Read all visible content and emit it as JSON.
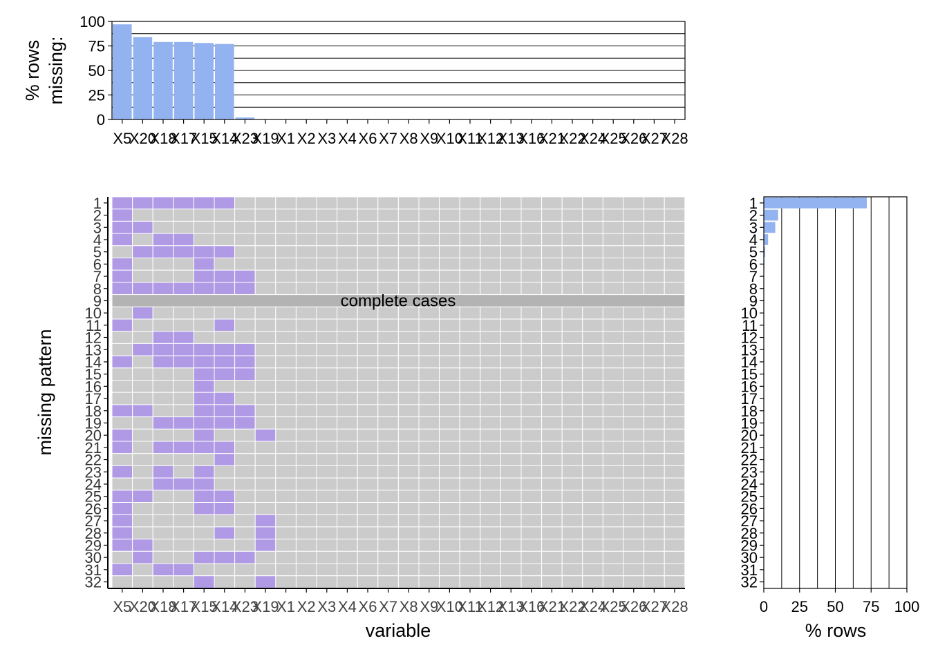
{
  "chart_data": [
    {
      "type": "bar",
      "panel": "top",
      "ylabel_lines": [
        "% rows",
        "missing:"
      ],
      "ylim": [
        0,
        100
      ],
      "yticks": [
        "0",
        "25",
        "50",
        "75",
        "100"
      ],
      "gridlines": [
        0,
        12.5,
        25,
        37.5,
        50,
        62.5,
        75,
        87.5,
        100
      ],
      "bar_color": "#93b3f0",
      "categories": [
        "X5",
        "X20",
        "X18",
        "X17",
        "X15",
        "X14",
        "X23",
        "X19",
        "X1",
        "X2",
        "X3",
        "X4",
        "X6",
        "X7",
        "X8",
        "X9",
        "X10",
        "X11",
        "X12",
        "X13",
        "X16",
        "X21",
        "X22",
        "X24",
        "X25",
        "X26",
        "X27",
        "X28"
      ],
      "values": [
        97,
        84,
        79,
        79,
        78,
        77,
        2,
        0,
        0,
        0,
        0,
        0,
        0,
        0,
        0,
        0,
        0,
        0,
        0,
        0,
        0,
        0,
        0,
        0,
        0,
        0,
        0,
        0
      ]
    },
    {
      "type": "heatmap",
      "panel": "main",
      "xlabel": "variable",
      "ylabel": "missing pattern",
      "missing_color": "#b09ae6",
      "present_color": "#cbcbcb",
      "complete_row_color": "#b3b3b3",
      "categories": [
        "X5",
        "X20",
        "X18",
        "X17",
        "X15",
        "X14",
        "X23",
        "X19",
        "X1",
        "X2",
        "X3",
        "X4",
        "X6",
        "X7",
        "X8",
        "X9",
        "X10",
        "X11",
        "X12",
        "X13",
        "X16",
        "X21",
        "X22",
        "X24",
        "X25",
        "X26",
        "X27",
        "X28"
      ],
      "patterns": [
        "1",
        "2",
        "3",
        "4",
        "5",
        "6",
        "7",
        "8",
        "9",
        "10",
        "11",
        "12",
        "13",
        "14",
        "15",
        "16",
        "17",
        "18",
        "19",
        "20",
        "21",
        "22",
        "23",
        "24",
        "25",
        "26",
        "27",
        "28",
        "29",
        "30",
        "31",
        "32"
      ],
      "complete_pattern_index": 8,
      "complete_label": "complete cases",
      "missing_cells": [
        [
          "X5",
          "X20",
          "X18",
          "X17",
          "X15",
          "X14"
        ],
        [
          "X5"
        ],
        [
          "X5",
          "X20"
        ],
        [
          "X5",
          "X18",
          "X17"
        ],
        [
          "X20",
          "X18",
          "X17",
          "X15",
          "X14"
        ],
        [
          "X5",
          "X15"
        ],
        [
          "X5",
          "X15",
          "X14",
          "X23"
        ],
        [
          "X5",
          "X20",
          "X18",
          "X17",
          "X15",
          "X14",
          "X23"
        ],
        [],
        [
          "X20"
        ],
        [
          "X5",
          "X14"
        ],
        [
          "X18",
          "X17"
        ],
        [
          "X20",
          "X18",
          "X17",
          "X15",
          "X14",
          "X23"
        ],
        [
          "X5",
          "X18",
          "X17",
          "X15",
          "X14",
          "X23"
        ],
        [
          "X15",
          "X14",
          "X23"
        ],
        [
          "X15"
        ],
        [
          "X15",
          "X14"
        ],
        [
          "X5",
          "X20",
          "X15",
          "X14",
          "X23"
        ],
        [
          "X18",
          "X17",
          "X15",
          "X14",
          "X23"
        ],
        [
          "X5",
          "X15",
          "X19"
        ],
        [
          "X5",
          "X18",
          "X17",
          "X15",
          "X14"
        ],
        [
          "X14"
        ],
        [
          "X5",
          "X18",
          "X15"
        ],
        [
          "X18",
          "X17",
          "X15"
        ],
        [
          "X5",
          "X20",
          "X15",
          "X14"
        ],
        [
          "X5",
          "X15",
          "X14"
        ],
        [
          "X5",
          "X19"
        ],
        [
          "X5",
          "X14",
          "X19"
        ],
        [
          "X5",
          "X20",
          "X19"
        ],
        [
          "X20",
          "X15",
          "X14",
          "X23"
        ],
        [
          "X5",
          "X18",
          "X17"
        ],
        [
          "X15",
          "X19"
        ]
      ]
    },
    {
      "type": "bar",
      "panel": "right",
      "orientation": "horizontal",
      "xlabel": "% rows",
      "xlim": [
        0,
        100
      ],
      "xticks": [
        "0",
        "25",
        "50",
        "75",
        "100"
      ],
      "gridlines": [
        0,
        12.5,
        25,
        37.5,
        50,
        62.5,
        75,
        87.5,
        100
      ],
      "bar_color": "#93b3f0",
      "categories": [
        "1",
        "2",
        "3",
        "4",
        "5",
        "6",
        "7",
        "8",
        "9",
        "10",
        "11",
        "12",
        "13",
        "14",
        "15",
        "16",
        "17",
        "18",
        "19",
        "20",
        "21",
        "22",
        "23",
        "24",
        "25",
        "26",
        "27",
        "28",
        "29",
        "30",
        "31",
        "32"
      ],
      "values": [
        72,
        10,
        8,
        3,
        1,
        0.5,
        0.2,
        0.2,
        0.2,
        0.2,
        0.2,
        0.2,
        0.2,
        0.2,
        0.2,
        0.2,
        0.2,
        0.2,
        0.2,
        0.2,
        0.2,
        0.2,
        0.2,
        0.2,
        0.2,
        0.2,
        0.2,
        0.2,
        0.2,
        0.2,
        0.2,
        0.2
      ]
    }
  ]
}
